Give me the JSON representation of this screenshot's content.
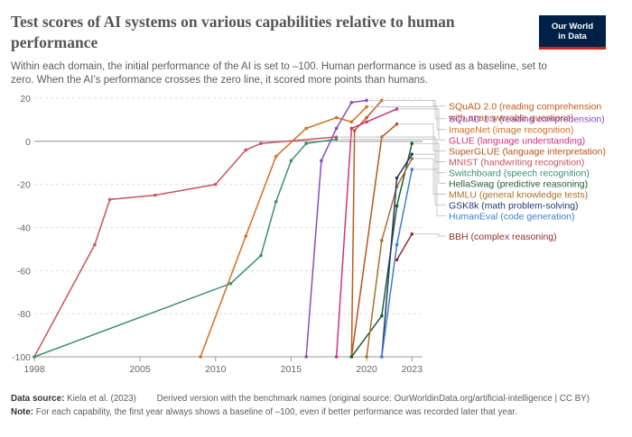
{
  "header": {
    "title": "Test scores of AI systems on various capabilities relative to human performance",
    "subtitle": "Within each domain, the initial performance of the AI is set to –100. Human performance is used as a baseline, set to zero. When the AI’s performance crosses the zero line, it scored more points than humans.",
    "logo_line1": "Our World",
    "logo_line2": "in Data"
  },
  "footer": {
    "source_label": "Data source:",
    "source_text": "Kiela et al. (2023)",
    "derived_text": "Derived version with the benchmark names (original source: OurWorldinData.org/artificial-intelligence | CC BY)",
    "note_label": "Note:",
    "note_text": "For each capability, the first year always shows a baseline of –100, even if better performance was recorded later that year."
  },
  "chart_data": {
    "type": "line",
    "title": "Test scores of AI systems on various capabilities relative to human performance",
    "xlabel": "",
    "ylabel": "",
    "xlim": [
      1998,
      2023.7
    ],
    "ylim": [
      -100,
      20
    ],
    "x_ticks": [
      {
        "value": 1998,
        "label": "1998"
      },
      {
        "value": 2005,
        "label": "2005"
      },
      {
        "value": 2010,
        "label": "2010"
      },
      {
        "value": 2015,
        "label": "2015"
      },
      {
        "value": 2020,
        "label": "2020"
      },
      {
        "value": 2023,
        "label": "2023"
      }
    ],
    "y_ticks": [
      {
        "value": 20,
        "label": "20"
      },
      {
        "value": 0,
        "label": "0"
      },
      {
        "value": -20,
        "label": "-20"
      },
      {
        "value": -40,
        "label": "-40"
      },
      {
        "value": -60,
        "label": "-60"
      },
      {
        "value": -80,
        "label": "-80"
      },
      {
        "value": -100,
        "label": "-100"
      }
    ],
    "grid": "horizontal dashed",
    "legend": "right, labels at line ends",
    "series": [
      {
        "name": "SQuAD 2.0 (reading comprehension with unanswerable questions)",
        "color": "#c05917",
        "label_lines": [
          "SQuAD 2.0 (reading comprehension",
          "with unanswerable questions)"
        ],
        "label_value": 16.5,
        "points": [
          [
            2019.0,
            -100
          ],
          [
            2019.2,
            5
          ],
          [
            2020.0,
            11
          ],
          [
            2021.0,
            19
          ]
        ]
      },
      {
        "name": "SQuAD 1.1 (reading comprehension)",
        "color": "#8a4bbf",
        "label_lines": [
          "SQuAD 1.1 (reading comprehension)"
        ],
        "label_value": 10.5,
        "points": [
          [
            2016.0,
            -100
          ],
          [
            2017.0,
            -9
          ],
          [
            2018.0,
            6
          ],
          [
            2019.0,
            18
          ],
          [
            2020.0,
            19
          ]
        ]
      },
      {
        "name": "ImageNet (image recognition)",
        "color": "#d26e24",
        "label_lines": [
          "ImageNet (image recognition)"
        ],
        "label_value": 5.5,
        "points": [
          [
            2009.0,
            -100
          ],
          [
            2012.0,
            -44
          ],
          [
            2014.0,
            -7
          ],
          [
            2016.0,
            6
          ],
          [
            2018.0,
            11
          ],
          [
            2019.0,
            9
          ],
          [
            2020.0,
            16
          ]
        ]
      },
      {
        "name": "GLUE (language understanding)",
        "color": "#d0317e",
        "label_lines": [
          "GLUE (language understanding)"
        ],
        "label_value": 0.5,
        "points": [
          [
            2018.0,
            -100
          ],
          [
            2019.0,
            6
          ],
          [
            2020.0,
            9
          ],
          [
            2022.0,
            15
          ]
        ]
      },
      {
        "name": "SuperGLUE (language interpretation)",
        "color": "#b5531b",
        "label_lines": [
          "SuperGLUE (language interpretation)"
        ],
        "label_value": -4.5,
        "points": [
          [
            2019.0,
            -100
          ],
          [
            2021.0,
            2
          ],
          [
            2022.0,
            8
          ]
        ]
      },
      {
        "name": "MNIST (handwriting recognition)",
        "color": "#c9535e",
        "label_lines": [
          "MNIST (handwriting recognition)"
        ],
        "label_value": -9.5,
        "points": [
          [
            1998.0,
            -100
          ],
          [
            2002.0,
            -48
          ],
          [
            2003.0,
            -27
          ],
          [
            2006.0,
            -25
          ],
          [
            2010.0,
            -20
          ],
          [
            2012.0,
            -4
          ],
          [
            2013.0,
            -1
          ],
          [
            2018.0,
            2
          ]
        ]
      },
      {
        "name": "Switchboard (speech recognition)",
        "color": "#3c8e6c",
        "label_lines": [
          "Switchboard (speech recognition)"
        ],
        "label_value": -14.5,
        "points": [
          [
            1998.0,
            -100
          ],
          [
            2011.0,
            -66
          ],
          [
            2013.0,
            -53
          ],
          [
            2014.0,
            -28
          ],
          [
            2015.0,
            -9
          ],
          [
            2016.0,
            -1
          ],
          [
            2018.0,
            1
          ]
        ]
      },
      {
        "name": "HellaSwag (predictive reasoning)",
        "color": "#1f5e2c",
        "label_lines": [
          "HellaSwag (predictive reasoning)"
        ],
        "label_value": -19.5,
        "points": [
          [
            2019.0,
            -100
          ],
          [
            2021.0,
            -81
          ],
          [
            2022.0,
            -30
          ],
          [
            2023.0,
            -1
          ]
        ]
      },
      {
        "name": "MMLU (general knowledge tests)",
        "color": "#a8702c",
        "label_lines": [
          "MMLU (general knowledge tests)"
        ],
        "label_value": -24.5,
        "points": [
          [
            2020.0,
            -100
          ],
          [
            2021.0,
            -46
          ],
          [
            2022.0,
            -21
          ],
          [
            2023.0,
            -8
          ]
        ]
      },
      {
        "name": "GSK8k (math problem-solving)",
        "color": "#213a73",
        "label_lines": [
          "GSK8k (math problem-solving)"
        ],
        "label_value": -29.5,
        "points": [
          [
            2021.0,
            -100
          ],
          [
            2022.0,
            -17
          ],
          [
            2023.0,
            -6
          ]
        ]
      },
      {
        "name": "HumanEval (code generation)",
        "color": "#3d7fca",
        "label_lines": [
          "HumanEval (code generation)"
        ],
        "label_value": -34.5,
        "points": [
          [
            2021.0,
            -100
          ],
          [
            2022.0,
            -48
          ],
          [
            2023.0,
            -13
          ]
        ]
      },
      {
        "name": "BBH (complex reasoning)",
        "color": "#8f2f2f",
        "label_lines": [
          "BBH (complex reasoning)"
        ],
        "label_value": -44.0,
        "points": [
          [
            2022.0,
            -55
          ],
          [
            2023.0,
            -43
          ]
        ]
      }
    ]
  }
}
